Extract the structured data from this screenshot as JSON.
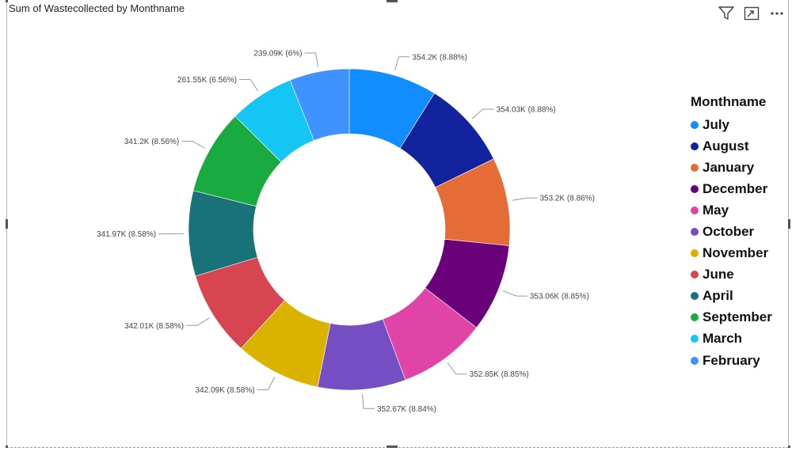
{
  "visual": {
    "title": "Sum of Wastecollected by Monthname",
    "icons": [
      "filter-icon",
      "focus-mode-icon",
      "more-options-icon"
    ]
  },
  "legend": {
    "title": "Monthname"
  },
  "chart_data": {
    "type": "pie",
    "donut": true,
    "title": "Sum of Wastecollected by Monthname",
    "legend_title": "Monthname",
    "legend_position": "right",
    "slices": [
      {
        "name": "July",
        "value": 354200,
        "label": "354.2K (8.88%)",
        "color": "#118DFF"
      },
      {
        "name": "August",
        "value": 354030,
        "label": "354.03K (8.88%)",
        "color": "#12239E"
      },
      {
        "name": "January",
        "value": 353200,
        "label": "353.2K (8.86%)",
        "color": "#E66C37"
      },
      {
        "name": "December",
        "value": 353060,
        "label": "353.06K (8.85%)",
        "color": "#6B007B"
      },
      {
        "name": "May",
        "value": 352850,
        "label": "352.85K (8.85%)",
        "color": "#E044A7"
      },
      {
        "name": "October",
        "value": 352670,
        "label": "352.67K (8.84%)",
        "color": "#744EC2"
      },
      {
        "name": "November",
        "value": 342090,
        "label": "342.09K (8.58%)",
        "color": "#D9B300"
      },
      {
        "name": "June",
        "value": 342010,
        "label": "342.01K (8.58%)",
        "color": "#D64550"
      },
      {
        "name": "April",
        "value": 341970,
        "label": "341.97K (8.58%)",
        "color": "#197278"
      },
      {
        "name": "September",
        "value": 341200,
        "label": "341.2K (8.56%)",
        "color": "#1AAB40"
      },
      {
        "name": "March",
        "value": 261550,
        "label": "261.55K (6.56%)",
        "color": "#15C6F4"
      },
      {
        "name": "February",
        "value": 239090,
        "label": "239.09K (6%)",
        "color": "#4092FF"
      }
    ]
  }
}
